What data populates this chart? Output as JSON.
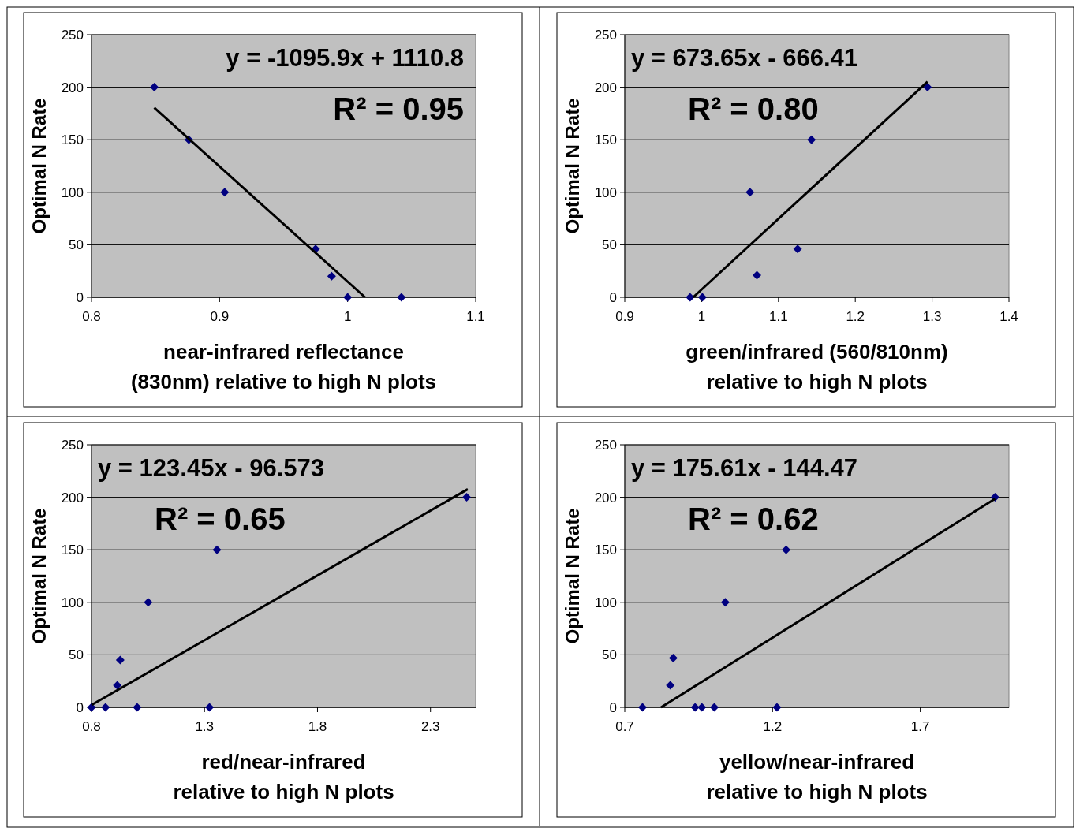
{
  "chart_data": [
    {
      "type": "scatter",
      "xlabel": "near-infrared reflectance (830nm) relative to high N plots",
      "ylabel": "Optimal N Rate",
      "xlim": [
        0.8,
        1.1
      ],
      "xticks": [
        0.8,
        0.9,
        1,
        1.1
      ],
      "ylim": [
        0,
        250
      ],
      "yticks": [
        0,
        50,
        100,
        150,
        200,
        250
      ],
      "grid": "y",
      "annotations": [
        "y = -1095.9x + 1110.8",
        "R² = 0.95"
      ],
      "series": [
        {
          "marker": "diamond",
          "color": "#000080",
          "x": [
            0.849,
            0.876,
            0.904,
            0.975,
            0.9875,
            1.0,
            1.042
          ],
          "values": [
            200,
            150,
            100,
            46,
            20,
            0,
            0
          ]
        },
        {
          "type": "line",
          "color": "#000000",
          "x": [
            0.849,
            1.0136
          ],
          "values": [
            180.4,
            0
          ]
        }
      ]
    },
    {
      "type": "scatter",
      "xlabel": "green/infrared (560/810nm) relative to high N plots",
      "ylabel": "Optimal N Rate",
      "xlim": [
        0.9,
        1.4
      ],
      "xticks": [
        0.9,
        1,
        1.1,
        1.2,
        1.3,
        1.4
      ],
      "ylim": [
        0,
        250
      ],
      "yticks": [
        0,
        50,
        100,
        150,
        200,
        250
      ],
      "grid": "y",
      "annotations": [
        "y = 673.65x - 666.41",
        "R² = 0.80"
      ],
      "series": [
        {
          "marker": "diamond",
          "color": "#000080",
          "x": [
            0.985,
            1.001,
            1.063,
            1.072,
            1.125,
            1.143,
            1.294
          ],
          "values": [
            0,
            0,
            100,
            21,
            46,
            150,
            200
          ]
        },
        {
          "type": "line",
          "color": "#000000",
          "x": [
            0.989,
            1.294
          ],
          "values": [
            0,
            205.3
          ]
        }
      ]
    },
    {
      "type": "scatter",
      "xlabel": "red/near-infrared relative to high N plots",
      "ylabel": "Optimal N Rate",
      "xlim": [
        0.8,
        2.5
      ],
      "xticks": [
        0.8,
        1.3,
        1.8,
        2.3
      ],
      "ylim": [
        0,
        250
      ],
      "yticks": [
        0,
        50,
        100,
        150,
        200,
        250
      ],
      "grid": "y",
      "annotations": [
        "y = 123.45x - 96.573",
        "R² = 0.65"
      ],
      "series": [
        {
          "marker": "diamond",
          "color": "#000080",
          "x": [
            0.8,
            0.862,
            0.914,
            0.927,
            1.002,
            1.051,
            1.322,
            1.355,
            2.46
          ],
          "values": [
            0,
            0,
            21,
            45,
            0,
            100,
            0,
            150,
            200
          ]
        },
        {
          "type": "line",
          "color": "#000000",
          "x": [
            0.8,
            2.465
          ],
          "values": [
            2.2,
            207.7
          ]
        }
      ]
    },
    {
      "type": "scatter",
      "xlabel": "yellow/near-infrared relative to high N plots",
      "ylabel": "Optimal N Rate",
      "xlim": [
        0.7,
        2.0
      ],
      "xticks": [
        0.7,
        1.2,
        1.7
      ],
      "ylim": [
        0,
        250
      ],
      "yticks": [
        0,
        50,
        100,
        150,
        200,
        250
      ],
      "grid": "y",
      "annotations": [
        "y = 175.61x - 144.47",
        "R² = 0.62"
      ],
      "series": [
        {
          "marker": "diamond",
          "color": "#000080",
          "x": [
            0.76,
            0.854,
            0.864,
            0.938,
            0.961,
            1.003,
            1.04,
            1.215,
            1.246,
            1.953
          ],
          "values": [
            0,
            21,
            47,
            0,
            0,
            0,
            100,
            0,
            150,
            200
          ]
        },
        {
          "type": "line",
          "color": "#000000",
          "x": [
            0.8227,
            1.953
          ],
          "values": [
            0,
            198.5
          ]
        }
      ]
    }
  ]
}
